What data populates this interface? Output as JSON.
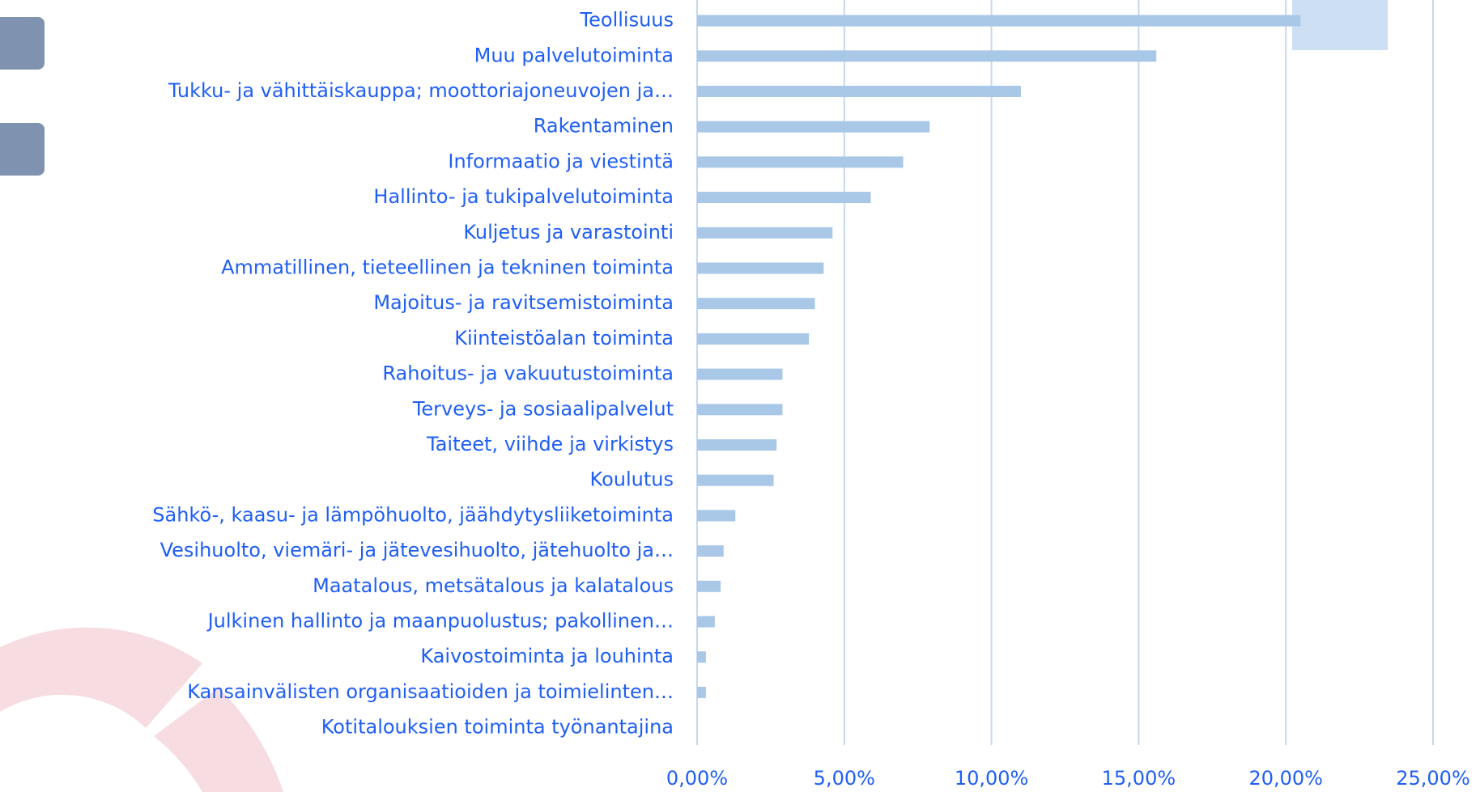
{
  "chart_data": {
    "type": "hbar",
    "categories": [
      "Teollisuus",
      "Muu palvelutoiminta",
      "Tukku- ja vähittäiskauppa; moottoriajoneuvojen ja…",
      "Rakentaminen",
      "Informaatio ja viestintä",
      "Hallinto- ja tukipalvelutoiminta",
      "Kuljetus ja varastointi",
      "Ammatillinen, tieteellinen ja tekninen toiminta",
      "Majoitus- ja ravitsemistoiminta",
      "Kiinteistöalan toiminta",
      "Rahoitus- ja vakuutustoiminta",
      "Terveys- ja sosiaalipalvelut",
      "Taiteet, viihde ja virkistys",
      "Koulutus",
      "Sähkö-, kaasu- ja lämpöhuolto, jäähdytysliiketoiminta",
      "Vesihuolto, viemäri- ja jätevesihuolto, jätehuolto ja…",
      "Maatalous, metsätalous ja kalatalous",
      "Julkinen hallinto ja maanpuolustus; pakollinen…",
      "Kaivostoiminta ja louhinta",
      "Kansainvälisten organisaatioiden ja toimielinten…",
      "Kotitalouksien toiminta työnantajina"
    ],
    "values": [
      20.5,
      15.6,
      11.0,
      7.9,
      7.0,
      5.9,
      4.6,
      4.3,
      4.0,
      3.8,
      2.9,
      2.9,
      2.7,
      2.6,
      1.3,
      0.9,
      0.8,
      0.6,
      0.3,
      0.3,
      0
    ],
    "color": "#a9c8e8",
    "xlim": [
      0,
      25
    ],
    "xticks": [
      {
        "value": 0,
        "label": "0,00%"
      },
      {
        "value": 5,
        "label": "5,00%"
      },
      {
        "value": 10,
        "label": "10,00%"
      },
      {
        "value": 15,
        "label": "15,00%"
      },
      {
        "value": 20,
        "label": "20,00%"
      },
      {
        "value": 25,
        "label": "25,00%"
      }
    ],
    "grid": true
  }
}
